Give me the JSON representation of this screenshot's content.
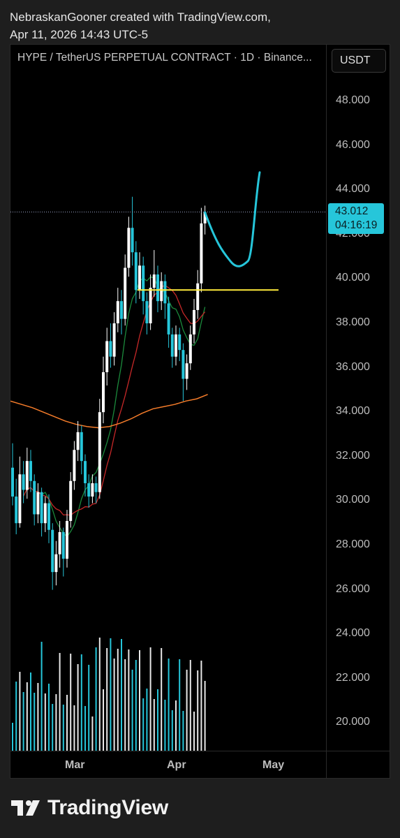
{
  "header": {
    "line1": "NebraskanGooner created with TradingView.com,",
    "line2": "Apr 11, 2026 14:43 UTC-5"
  },
  "chart": {
    "title": "HYPE / TetherUS PERPETUAL CONTRACT · 1D · Binance...",
    "currency": "USDT",
    "last_price": "43.012",
    "countdown": "04:16:19",
    "y_ticks": [
      "48.000",
      "46.000",
      "44.000",
      "42.000",
      "40.000",
      "38.000",
      "36.000",
      "34.000",
      "32.000",
      "30.000",
      "28.000",
      "26.000",
      "24.000",
      "22.000",
      "20.000"
    ],
    "x_ticks": [
      "Mar",
      "Apr",
      "May"
    ]
  },
  "colors": {
    "background": "#000000",
    "candle_up": "#ffffff",
    "candle_down": "#26c6da",
    "ma_orange": "#f57c2a",
    "ma_red": "#c62828",
    "ma_green": "#1b8a3c",
    "level_line": "#ffeb3b",
    "projection": "#26c6da"
  },
  "footer": {
    "brand": "TradingView",
    "logo_icon": "tradingview-logo-icon"
  },
  "chart_data": {
    "type": "candlestick",
    "ylim": [
      19,
      49.5
    ],
    "dates_start": "Feb 1",
    "candles": [
      [
        31.5,
        30.2,
        32.6,
        29.8
      ],
      [
        30.2,
        29.0,
        31.0,
        28.5
      ],
      [
        29.0,
        31.2,
        32.0,
        28.8
      ],
      [
        31.2,
        30.5,
        31.8,
        29.9
      ],
      [
        30.5,
        31.8,
        32.4,
        30.1
      ],
      [
        31.8,
        30.9,
        32.3,
        30.4
      ],
      [
        30.9,
        29.4,
        31.2,
        28.9
      ],
      [
        29.4,
        30.4,
        30.8,
        29.0
      ],
      [
        30.4,
        29.0,
        30.6,
        28.4
      ],
      [
        29.0,
        29.9,
        30.2,
        28.6
      ],
      [
        29.9,
        28.7,
        30.3,
        28.1
      ],
      [
        28.7,
        26.8,
        29.0,
        26.0
      ],
      [
        26.8,
        27.6,
        28.2,
        26.2
      ],
      [
        27.6,
        28.6,
        29.1,
        27.0
      ],
      [
        28.6,
        27.4,
        28.8,
        26.6
      ],
      [
        27.4,
        29.1,
        29.6,
        27.0
      ],
      [
        29.1,
        30.9,
        31.3,
        28.8
      ],
      [
        30.9,
        32.3,
        32.7,
        30.5
      ],
      [
        32.3,
        33.1,
        33.6,
        31.8
      ],
      [
        33.1,
        31.8,
        33.4,
        31.2
      ],
      [
        31.8,
        30.8,
        32.1,
        30.2
      ],
      [
        30.8,
        30.2,
        31.2,
        29.7
      ],
      [
        30.2,
        30.8,
        31.2,
        29.9
      ],
      [
        30.8,
        30.4,
        31.1,
        29.9
      ],
      [
        30.4,
        34.0,
        34.6,
        30.1
      ],
      [
        34.0,
        35.8,
        36.5,
        33.5
      ],
      [
        35.8,
        37.2,
        37.8,
        35.2
      ],
      [
        37.2,
        36.5,
        38.0,
        36.0
      ],
      [
        36.5,
        38.0,
        38.5,
        36.1
      ],
      [
        38.0,
        39.0,
        39.6,
        37.6
      ],
      [
        39.0,
        38.2,
        39.5,
        37.5
      ],
      [
        38.2,
        40.5,
        41.1,
        37.9
      ],
      [
        40.5,
        42.3,
        42.8,
        40.1
      ],
      [
        42.3,
        41.2,
        43.7,
        40.6
      ],
      [
        41.2,
        39.5,
        41.7,
        38.9
      ],
      [
        39.5,
        40.6,
        41.2,
        39.1
      ],
      [
        40.6,
        39.0,
        41.0,
        38.4
      ],
      [
        39.0,
        38.0,
        39.4,
        37.5
      ],
      [
        38.0,
        39.6,
        40.2,
        37.7
      ],
      [
        39.6,
        40.2,
        41.3,
        39.2
      ],
      [
        40.2,
        39.0,
        40.6,
        38.5
      ],
      [
        39.0,
        39.9,
        40.3,
        38.6
      ],
      [
        39.9,
        38.9,
        40.2,
        38.2
      ],
      [
        38.9,
        37.5,
        39.2,
        36.9
      ],
      [
        37.5,
        36.5,
        37.8,
        36.0
      ],
      [
        36.5,
        37.5,
        37.9,
        36.1
      ],
      [
        37.5,
        36.8,
        37.8,
        36.3
      ],
      [
        36.8,
        35.5,
        37.1,
        34.5
      ],
      [
        35.5,
        36.2,
        36.6,
        35.0
      ],
      [
        36.2,
        37.5,
        37.9,
        35.9
      ],
      [
        37.5,
        38.6,
        39.1,
        37.1
      ],
      [
        38.6,
        39.8,
        40.4,
        38.2
      ],
      [
        39.8,
        42.5,
        43.2,
        39.4
      ],
      [
        42.5,
        43.0,
        43.3,
        42.0
      ]
    ],
    "level_line": 39.5,
    "projection": [
      43.0,
      41.2,
      40.6,
      40.9,
      44.8
    ]
  }
}
